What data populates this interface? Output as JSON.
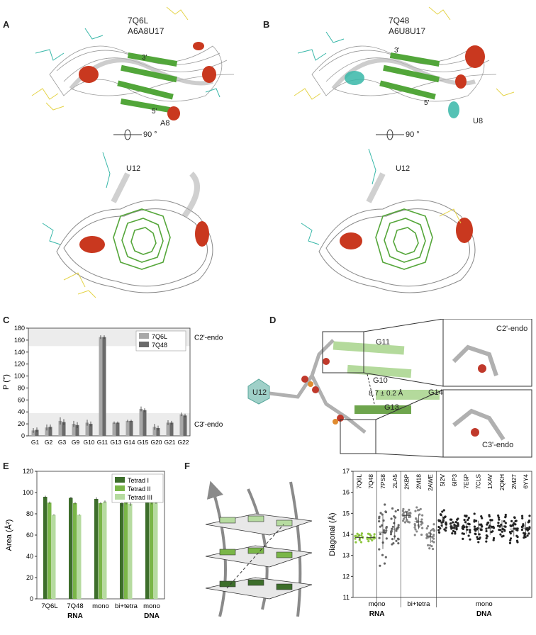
{
  "panels": {
    "A": {
      "letter": "A",
      "pdb": "7Q6L",
      "seq": "A6A8U17",
      "three": "3'",
      "five": "5'",
      "residue": "A8",
      "rot": "90 °",
      "residue_bottom": "U12"
    },
    "B": {
      "letter": "B",
      "pdb": "7Q48",
      "seq": "A6U8U17",
      "three": "3'",
      "five": "5'",
      "residue": "U8",
      "rot": "90 °",
      "residue_bottom": "U12"
    },
    "C": {
      "letter": "C"
    },
    "D": {
      "letter": "D",
      "labels": {
        "g11": "G11",
        "g10": "G10",
        "g13": "G13",
        "g14": "G14",
        "u12": "U12",
        "dist": "8.7 ± 0.2 Å",
        "c2": "C2'-endo",
        "c3": "C3'-endo"
      }
    },
    "E": {
      "letter": "E"
    },
    "F": {
      "letter": "F"
    }
  },
  "colors": {
    "c2endo_light": "#a8a8a8",
    "c3endo_dark": "#6a6a6a",
    "tetrad1": "#3d6e2b",
    "tetrad2": "#7ab648",
    "tetrad3": "#b6dba0",
    "green_pt": "#8dc63f"
  },
  "chart_data": [
    {
      "type": "bar",
      "ylabel": "P (°)",
      "ylim": [
        0,
        180
      ],
      "yticks": [
        0,
        20,
        40,
        60,
        80,
        100,
        120,
        140,
        160,
        180
      ],
      "categories": [
        "G1",
        "G2",
        "G3",
        "G9",
        "G10",
        "G11",
        "G13",
        "G14",
        "G15",
        "G20",
        "G21",
        "G22"
      ],
      "series": [
        {
          "name": "7Q6L",
          "values": [
            9,
            14,
            25,
            20,
            22,
            165,
            22,
            25,
            45,
            15,
            22,
            36
          ],
          "errors": [
            4,
            5,
            6,
            5,
            5,
            3,
            2,
            2,
            4,
            5,
            4,
            3
          ]
        },
        {
          "name": "7Q48",
          "values": [
            10,
            15,
            23,
            18,
            20,
            165,
            22,
            25,
            43,
            13,
            22,
            34
          ],
          "errors": [
            4,
            4,
            5,
            5,
            4,
            3,
            2,
            2,
            3,
            4,
            3,
            3
          ]
        }
      ],
      "bands": {
        "c2": "C2'-endo",
        "c3": "C3'-endo"
      }
    },
    {
      "type": "bar",
      "ylabel": "Area (Å²)",
      "ylim": [
        0,
        120
      ],
      "yticks": [
        0,
        20,
        40,
        60,
        80,
        100,
        120
      ],
      "categories": [
        "7Q6L",
        "7Q48",
        "mono",
        "bi+tetra",
        "mono"
      ],
      "groups": [
        "RNA",
        "DNA"
      ],
      "series": [
        {
          "name": "Tetrad I",
          "values": [
            96,
            95,
            94,
            90,
            93
          ],
          "errors": [
            1,
            1,
            1.5,
            3,
            3
          ]
        },
        {
          "name": "Tetrad II",
          "values": [
            90.5,
            90,
            90,
            91,
            91.5
          ],
          "errors": [
            1,
            1,
            1,
            2,
            2.5
          ]
        },
        {
          "name": "Tetrad III",
          "values": [
            79,
            79,
            91.5,
            89.5,
            92.5
          ],
          "errors": [
            0.5,
            0.5,
            1,
            2,
            3
          ]
        }
      ]
    },
    {
      "type": "scatter",
      "ylabel": "Diagonal (Å)",
      "ylim": [
        11,
        17
      ],
      "yticks": [
        11,
        12,
        13,
        14,
        15,
        16,
        17
      ],
      "columns": [
        "7Q6L",
        "7Q48",
        "7PS8",
        "2LA5",
        "2KBP",
        "2M18",
        "2AWE",
        "5I2V",
        "6IP3",
        "7E5P",
        "7CLS",
        "1XAV",
        "2QKH",
        "2M27",
        "6YY4"
      ],
      "means": [
        13.85,
        13.85,
        14.1,
        14.25,
        14.9,
        14.6,
        13.9,
        14.6,
        14.4,
        14.35,
        14.3,
        14.3,
        14.4,
        14.25,
        14.3
      ],
      "spread": [
        0.12,
        0.1,
        0.8,
        0.5,
        0.18,
        0.35,
        0.3,
        0.28,
        0.2,
        0.32,
        0.35,
        0.32,
        0.28,
        0.35,
        0.3
      ],
      "xlabels": {
        "mono1": "mono",
        "bitetra": "bi+tetra",
        "mono2": "mono",
        "rna": "RNA",
        "dna": "DNA"
      }
    }
  ]
}
